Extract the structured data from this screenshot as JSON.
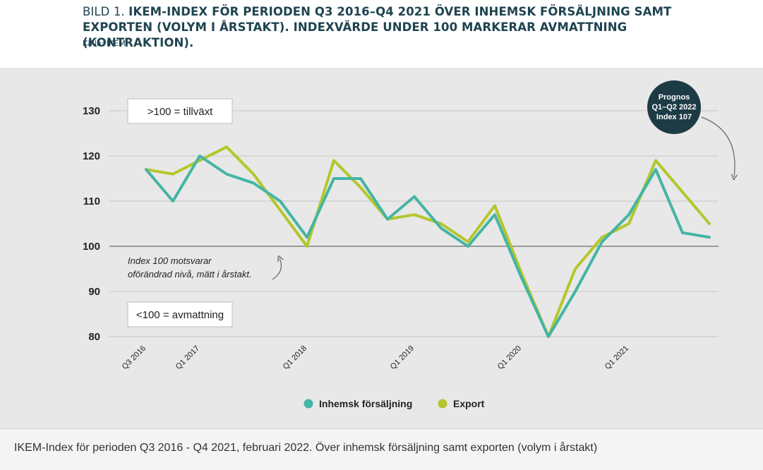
{
  "header": {
    "title_prefix": "BILD 1. ",
    "title_main": "IKEM-INDEX FÖR PERIODEN Q3 2016–Q4 2021 ÖVER INHEMSK FÖRSÄLJNING SAMT EXPORTEN (VOLYM I ÅRSTAKT). INDEXVÄRDE UNDER 100 MARKERAR AVMATTNING (KONTRAKTION).",
    "source": "Källa: IKEM"
  },
  "annotations": {
    "growth_box": ">100 = tillväxt",
    "slowdown_box": "<100 = avmattning",
    "index_note_line1": "Index 100 motsvarar",
    "index_note_line2": "oförändrad nivå, mätt i årstakt.",
    "forecast_line1": "Prognos",
    "forecast_line2": "Q1–Q2 2022",
    "forecast_line3": "Index 107"
  },
  "caption": "IKEM-Index för perioden Q3 2016 - Q4 2021, februari 2022. Över inhemsk försäljning samt exporten (volym i årstakt)",
  "colors": {
    "inhemsk": "#44b5a3",
    "export": "#b4c62c",
    "forecast_circle": "#1d3b45",
    "grid": "#c6c6c6",
    "reference_line": "#9a9a9a",
    "text": "#222222"
  },
  "chart_data": {
    "type": "line",
    "title": "",
    "xlabel": "",
    "ylabel": "",
    "ylim": [
      80,
      130
    ],
    "yticks": [
      80,
      90,
      100,
      110,
      120,
      130
    ],
    "grid": true,
    "legend_position": "bottom-center",
    "reference_value": 100,
    "x": [
      "Q3 2016",
      "Q4 2016",
      "Q1 2017",
      "Q2 2017",
      "Q3 2017",
      "Q4 2017",
      "Q1 2018",
      "Q2 2018",
      "Q3 2018",
      "Q4 2018",
      "Q1 2019",
      "Q2 2019",
      "Q3 2019",
      "Q4 2019",
      "Q1 2020",
      "Q2 2020",
      "Q3 2020",
      "Q4 2020",
      "Q1 2021",
      "Q2 2021",
      "Q3 2021",
      "Q4 2021"
    ],
    "xtick_labels": [
      "Q3 2016",
      "Q1 2017",
      "Q1 2018",
      "Q1 2019",
      "Q1 2020",
      "Q1 2021"
    ],
    "series": [
      {
        "name": "Inhemsk försäljning",
        "values": [
          117,
          110,
          120,
          116,
          114,
          110,
          102,
          115,
          115,
          106,
          111,
          104,
          100,
          107,
          93,
          80,
          90,
          101,
          107,
          117,
          103,
          102
        ]
      },
      {
        "name": "Export",
        "values": [
          117,
          116,
          119,
          122,
          116,
          108,
          100,
          119,
          113,
          106,
          107,
          105,
          101,
          109,
          94,
          80,
          95,
          102,
          105,
          119,
          112,
          105
        ]
      }
    ]
  }
}
